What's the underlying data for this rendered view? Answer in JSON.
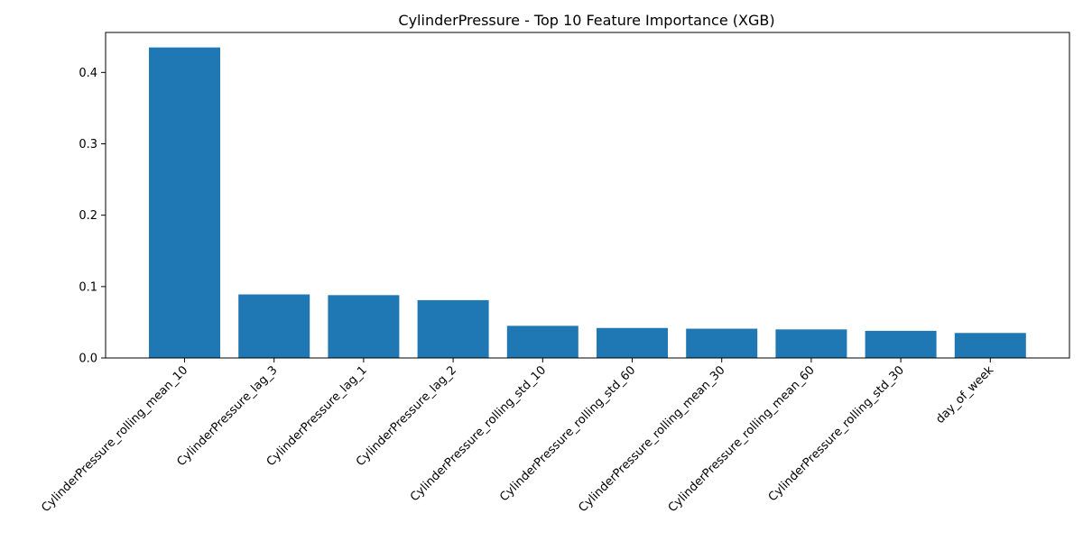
{
  "chart_data": {
    "type": "bar",
    "title": "CylinderPressure - Top 10 Feature Importance (XGB)",
    "xlabel": "",
    "ylabel": "",
    "categories": [
      "CylinderPressure_rolling_mean_10",
      "CylinderPressure_lag_3",
      "CylinderPressure_lag_1",
      "CylinderPressure_lag_2",
      "CylinderPressure_rolling_std_10",
      "CylinderPressure_rolling_std_60",
      "CylinderPressure_rolling_mean_30",
      "CylinderPressure_rolling_mean_60",
      "CylinderPressure_rolling_std_30",
      "day_of_week"
    ],
    "values": [
      0.435,
      0.089,
      0.088,
      0.081,
      0.045,
      0.042,
      0.041,
      0.04,
      0.038,
      0.035
    ],
    "ylim": [
      0,
      0.456
    ],
    "yticks": [
      0.0,
      0.1,
      0.2,
      0.3,
      0.4
    ],
    "ytick_labels": [
      "0.0",
      "0.1",
      "0.2",
      "0.3",
      "0.4"
    ],
    "grid": false,
    "legend": "none",
    "bar_color": "#1f77b4"
  }
}
